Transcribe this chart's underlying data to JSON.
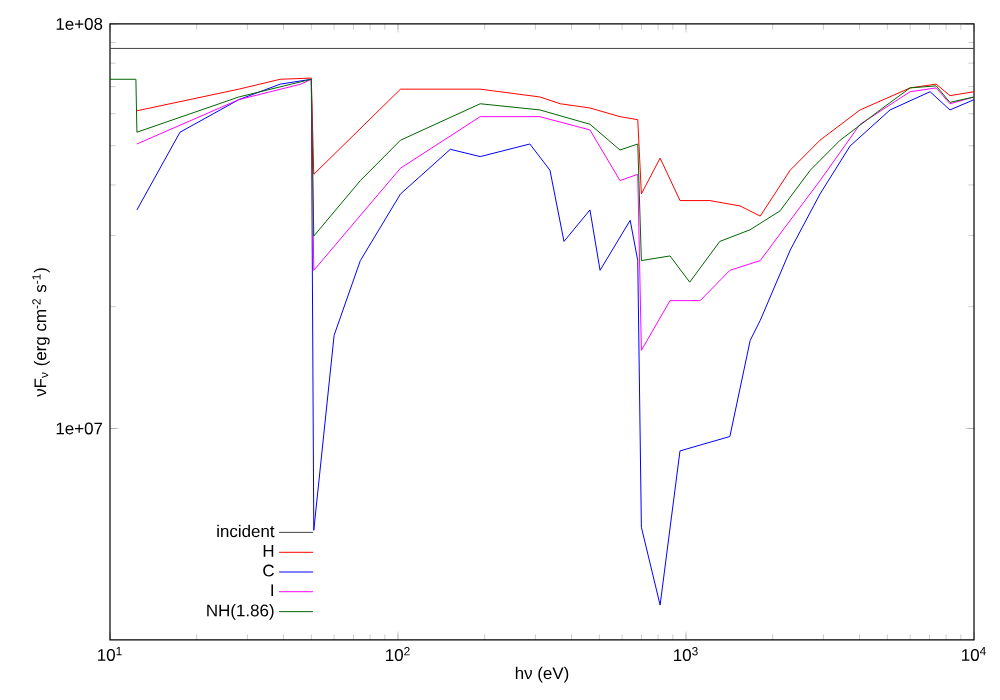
{
  "chart_data": {
    "type": "line",
    "xlabel": "hν (eV)",
    "ylabel": "νF$_{ν}$ (erg cm$^{-2}$ s$^{-1}$)",
    "log": "xy",
    "legend": "bottom left",
    "xlim": [
      10,
      10000
    ],
    "ylim": [
      3000000,
      100000000
    ],
    "xticks": [
      {
        "value": 10,
        "label": "10$^{1}$"
      },
      {
        "value": 100,
        "label": "10$^{2}$"
      },
      {
        "value": 1000,
        "label": "10$^{3}$"
      },
      {
        "value": 10000,
        "label": "10$^{4}$"
      }
    ],
    "yticks": [
      {
        "value": 10000000,
        "label": "1e+07"
      },
      {
        "value": 100000000,
        "label": "1e+08"
      }
    ],
    "series": [
      {
        "name": "incident",
        "color": "#404040",
        "x": [
          10,
          10000
        ],
        "values": [
          87000000,
          87000000
        ]
      },
      {
        "name": "H",
        "color": "#ff0000",
        "x": [
          12.4,
          28,
          39,
          50,
          51,
          102,
          193,
          311,
          366,
          464,
          590,
          680,
          700,
          813,
          953,
          1210,
          1540,
          1810,
          2300,
          2920,
          4020,
          6000,
          7390,
          8250,
          10000
        ],
        "values": [
          61000000,
          69000000,
          73000000,
          73500000,
          42500000,
          69000000,
          69000000,
          66000000,
          63500000,
          62000000,
          59000000,
          58000000,
          38000000,
          46600000,
          36600000,
          36600000,
          35500000,
          33500000,
          43500000,
          51600000,
          61300000,
          69500000,
          71000000,
          66500000,
          68000000
        ]
      },
      {
        "name": "C",
        "color": "#0000ff",
        "x": [
          12.4,
          17.5,
          28,
          39,
          50,
          51,
          60,
          74,
          102,
          152,
          193,
          287,
          337,
          377,
          464,
          503,
          640,
          680,
          700,
          813,
          953,
          1120,
          1420,
          1670,
          1810,
          2300,
          2920,
          3710,
          5110,
          7040,
          8250,
          10000
        ],
        "values": [
          34700000,
          54000000,
          65000000,
          71000000,
          73000000,
          5600000,
          17000000,
          26000000,
          38000000,
          49000000,
          47000000,
          50500000,
          43500000,
          29000000,
          34700000,
          24600000,
          32700000,
          26000000,
          5700000,
          3660000,
          8800000,
          9100000,
          9550000,
          16500000,
          18500000,
          27600000,
          38000000,
          49900000,
          61300000,
          68000000,
          61300000,
          65000000
        ]
      },
      {
        "name": "I",
        "color": "#ff00ff",
        "x": [
          12.4,
          28,
          46,
          50,
          51,
          102,
          193,
          311,
          464,
          590,
          680,
          700,
          880,
          1120,
          1420,
          1810,
          2300,
          2920,
          4020,
          6000,
          7390,
          8250,
          10000
        ],
        "values": [
          50500000,
          65000000,
          71000000,
          73000000,
          24600000,
          44000000,
          59000000,
          59000000,
          54700000,
          41000000,
          42500000,
          15600000,
          20700000,
          20700000,
          24600000,
          26000000,
          32700000,
          41000000,
          56500000,
          68000000,
          69500000,
          63500000,
          66000000
        ]
      },
      {
        "name": "NH(1.86)",
        "color": "#006400",
        "x": [
          10,
          12.3,
          12.4,
          28,
          50,
          51,
          74,
          102,
          193,
          311,
          464,
          590,
          680,
          700,
          880,
          1030,
          1310,
          1670,
          2120,
          2700,
          3430,
          4720,
          6000,
          7390,
          8250,
          10000
        ],
        "values": [
          73000000,
          73000000,
          54000000,
          66000000,
          73000000,
          29900000,
          41000000,
          51600000,
          63500000,
          61300000,
          56500000,
          48800000,
          50500000,
          26000000,
          26700000,
          23000000,
          29000000,
          31000000,
          34500000,
          43500000,
          51600000,
          61300000,
          69500000,
          70300000,
          64000000,
          66000000
        ]
      }
    ]
  }
}
